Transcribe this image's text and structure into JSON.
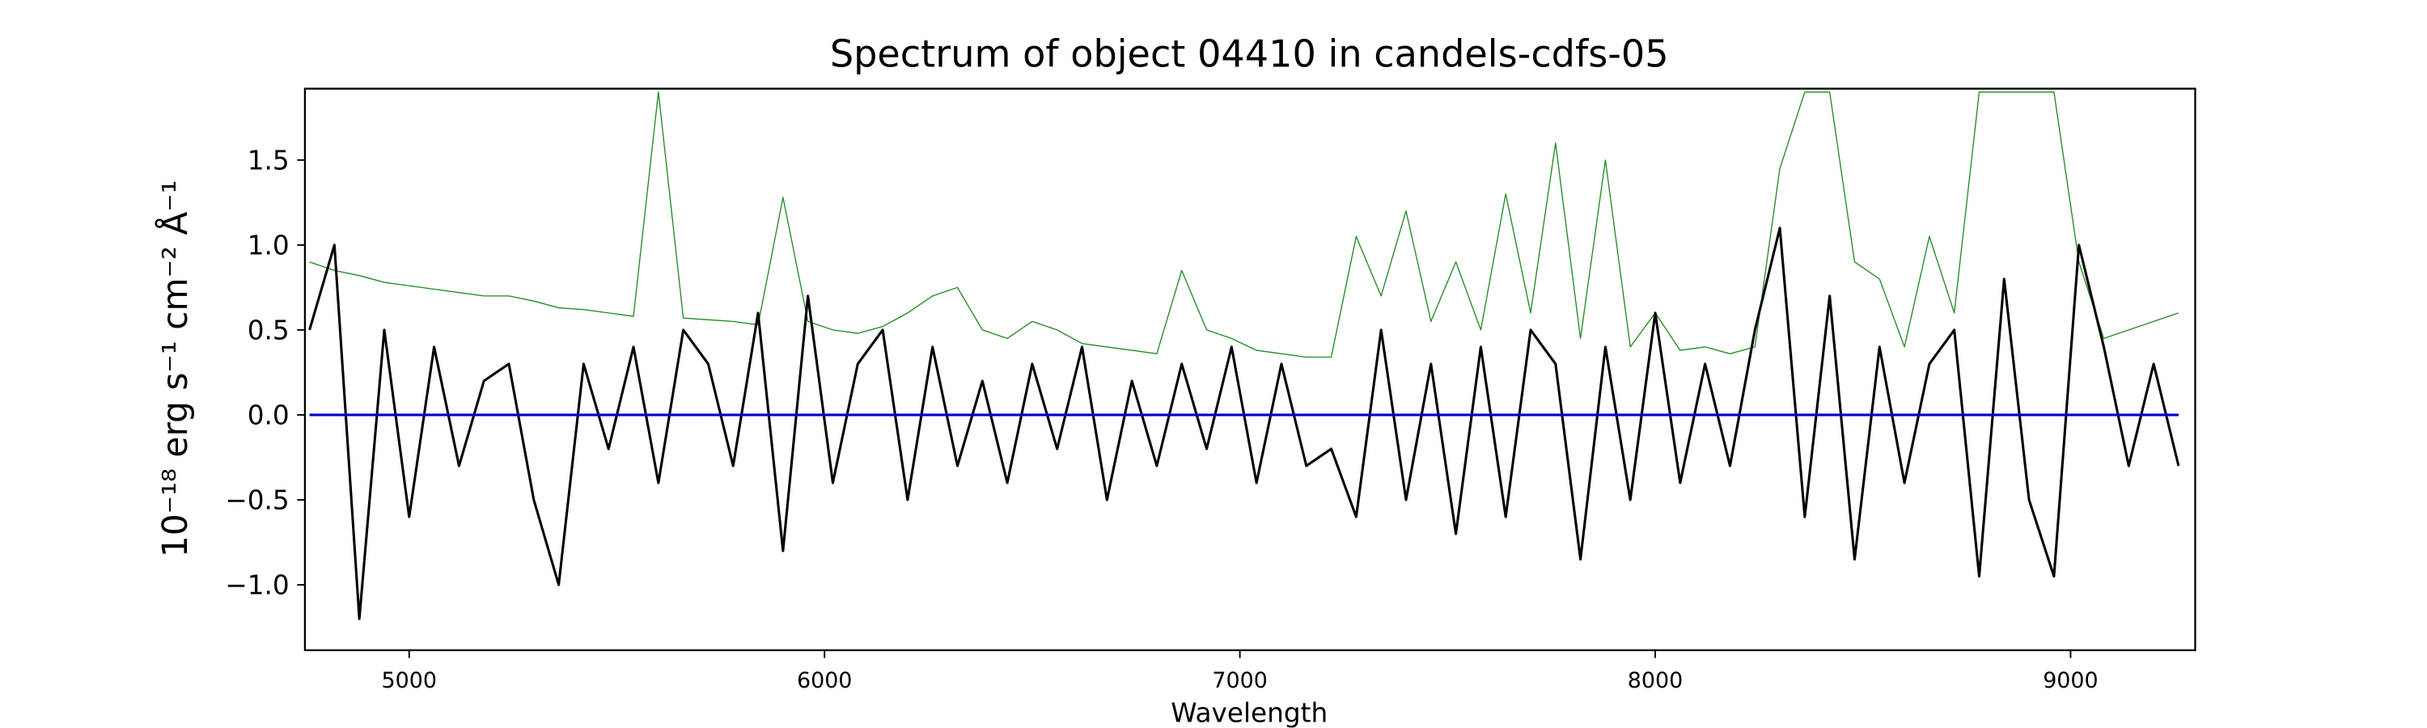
{
  "chart_data": {
    "type": "line",
    "title": "Spectrum of object 04410 in candels-cdfs-05",
    "xlabel": "Wavelength",
    "ylabel": "10⁻¹⁸ erg s⁻¹ cm⁻² Å⁻¹",
    "xlim": [
      4749,
      9300
    ],
    "ylim": [
      -1.385,
      1.92
    ],
    "xticks": [
      5000,
      6000,
      7000,
      8000,
      9000
    ],
    "yticks": [
      {
        "value": -1.0,
        "label": "−1.0"
      },
      {
        "value": -0.5,
        "label": "−0.5"
      },
      {
        "value": 0.0,
        "label": "0.0"
      },
      {
        "value": 0.5,
        "label": "0.5"
      },
      {
        "value": 1.0,
        "label": "1.0"
      },
      {
        "value": 1.5,
        "label": "1.5"
      }
    ],
    "grid": false,
    "x": [
      4760,
      4820,
      4880,
      4940,
      5000,
      5060,
      5120,
      5180,
      5240,
      5300,
      5360,
      5420,
      5480,
      5540,
      5600,
      5660,
      5720,
      5780,
      5840,
      5900,
      5960,
      6020,
      6080,
      6140,
      6200,
      6260,
      6320,
      6380,
      6440,
      6500,
      6560,
      6620,
      6680,
      6740,
      6800,
      6860,
      6920,
      6980,
      7040,
      7100,
      7160,
      7220,
      7280,
      7340,
      7400,
      7460,
      7520,
      7580,
      7640,
      7700,
      7760,
      7820,
      7880,
      7940,
      8000,
      8060,
      8120,
      8180,
      8240,
      8300,
      8360,
      8420,
      8480,
      8540,
      8600,
      8660,
      8720,
      8780,
      8840,
      8900,
      8960,
      9020,
      9080,
      9140,
      9200,
      9260
    ],
    "series": [
      {
        "color": "#228b22",
        "width": 0.7,
        "values": [
          0.9,
          0.85,
          0.82,
          0.78,
          0.76,
          0.74,
          0.72,
          0.7,
          0.7,
          0.67,
          0.63,
          0.62,
          0.6,
          0.58,
          1.9,
          0.57,
          0.56,
          0.55,
          0.53,
          1.28,
          0.55,
          0.5,
          0.48,
          0.52,
          0.6,
          0.7,
          0.75,
          0.5,
          0.45,
          0.55,
          0.5,
          0.42,
          0.4,
          0.38,
          0.36,
          0.85,
          0.5,
          0.45,
          0.38,
          0.36,
          0.34,
          0.34,
          1.05,
          0.7,
          1.2,
          0.55,
          0.9,
          0.5,
          1.3,
          0.6,
          1.6,
          0.45,
          1.5,
          0.4,
          0.6,
          0.38,
          0.4,
          0.36,
          0.4,
          1.45,
          1.9,
          1.9,
          0.9,
          0.8,
          0.4,
          1.05,
          0.6,
          1.9,
          1.9,
          1.9,
          1.9,
          0.9,
          0.45,
          0.5,
          0.55,
          0.6
        ]
      },
      {
        "color": "#000000",
        "width": 1.6,
        "values": [
          0.5,
          1.0,
          -1.2,
          0.5,
          -0.6,
          0.4,
          -0.3,
          0.2,
          0.3,
          -0.5,
          -1.0,
          0.3,
          -0.2,
          0.4,
          -0.4,
          0.5,
          0.3,
          -0.3,
          0.6,
          -0.8,
          0.7,
          -0.4,
          0.3,
          0.5,
          -0.5,
          0.4,
          -0.3,
          0.2,
          -0.4,
          0.3,
          -0.2,
          0.4,
          -0.5,
          0.2,
          -0.3,
          0.3,
          -0.2,
          0.4,
          -0.4,
          0.3,
          -0.3,
          -0.2,
          -0.6,
          0.5,
          -0.5,
          0.3,
          -0.7,
          0.4,
          -0.6,
          0.5,
          0.3,
          -0.85,
          0.4,
          -0.5,
          0.6,
          -0.4,
          0.3,
          -0.3,
          0.5,
          1.1,
          -0.6,
          0.7,
          -0.85,
          0.4,
          -0.4,
          0.3,
          0.5,
          -0.95,
          0.8,
          -0.5,
          -0.95,
          1.0,
          0.4,
          -0.3,
          0.3,
          -0.3
        ]
      },
      {
        "color": "#0000cc",
        "width": 1.6,
        "values": [
          0,
          0,
          0,
          0,
          0,
          0,
          0,
          0,
          0,
          0,
          0,
          0,
          0,
          0,
          0,
          0,
          0,
          0,
          0,
          0,
          0,
          0,
          0,
          0,
          0,
          0,
          0,
          0,
          0,
          0,
          0,
          0,
          0,
          0,
          0,
          0,
          0,
          0,
          0,
          0,
          0,
          0,
          0,
          0,
          0,
          0,
          0,
          0,
          0,
          0,
          0,
          0,
          0,
          0,
          0,
          0,
          0,
          0,
          0,
          0,
          0,
          0,
          0,
          0,
          0,
          0,
          0,
          0,
          0,
          0,
          0,
          0,
          0,
          0,
          0,
          0
        ]
      }
    ]
  }
}
